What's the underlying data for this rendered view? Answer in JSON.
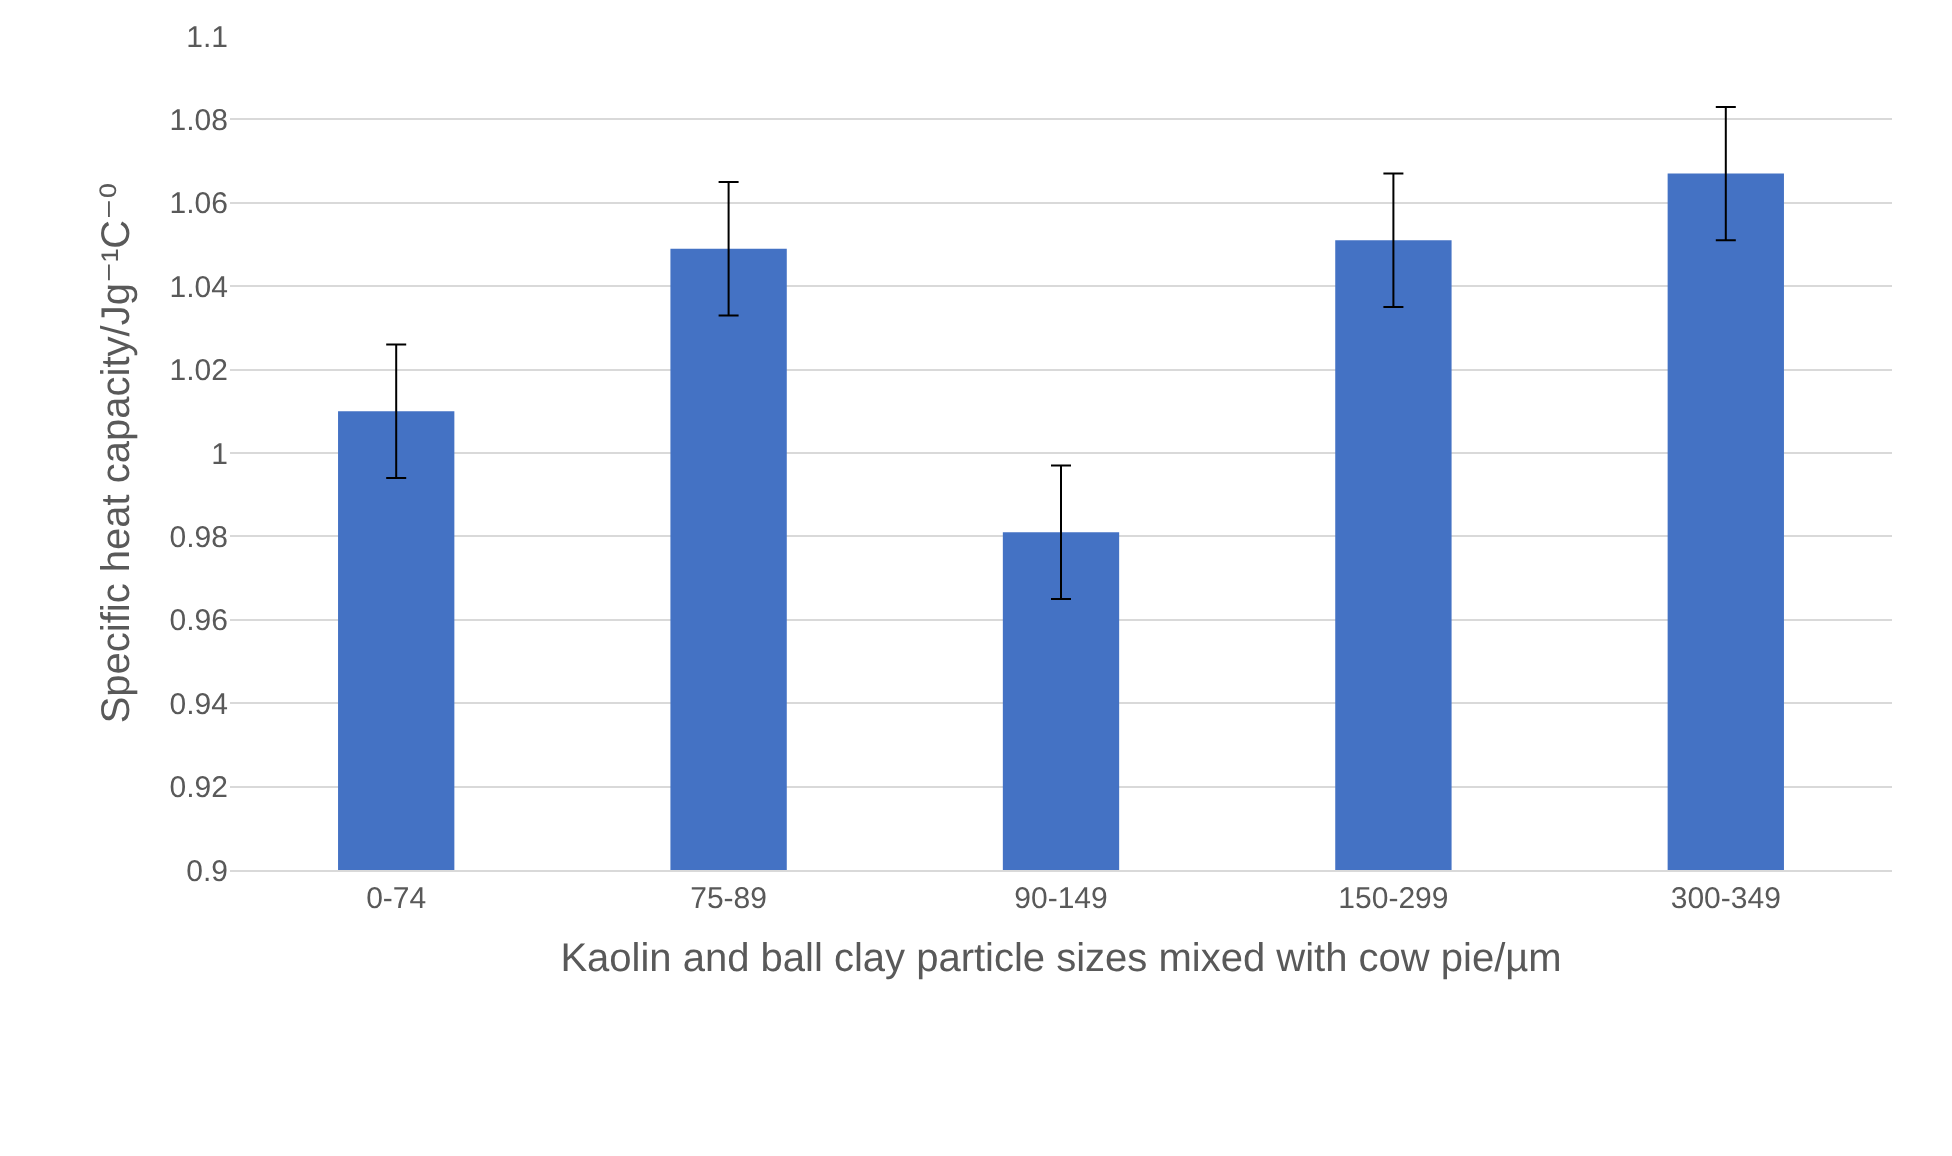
{
  "chart_data": {
    "type": "bar",
    "xlabel": "Kaolin and ball clay particle sizes mixed with cow pie/µm",
    "ylabel": "Specific heat capacity/Jg⁻¹C⁻⁰",
    "categories": [
      "0-74",
      "75-89",
      "90-149",
      "150-299",
      "300-349"
    ],
    "values": [
      1.01,
      1.049,
      0.981,
      1.051,
      1.067
    ],
    "errors": [
      0.016,
      0.016,
      0.016,
      0.016,
      0.016
    ],
    "color": "#4472c4",
    "ylim": [
      0.9,
      1.1
    ],
    "yticks": [
      0.9,
      0.92,
      0.94,
      0.96,
      0.98,
      1,
      1.02,
      1.04,
      1.06,
      1.08,
      1.1
    ],
    "grid": "y"
  }
}
